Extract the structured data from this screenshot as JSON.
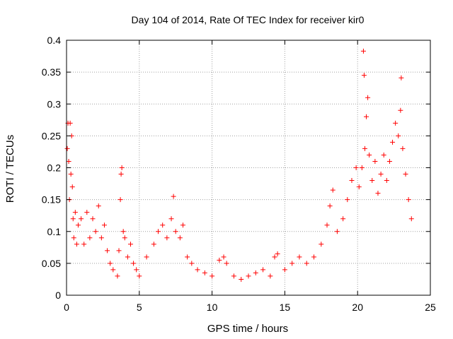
{
  "chart_data": {
    "type": "scatter",
    "title": "Day 104 of 2014, Rate Of TEC Index for receiver kir0",
    "xlabel": "GPS time / hours",
    "ylabel": "ROTI / TECUs",
    "xlim": [
      0,
      25
    ],
    "ylim": [
      0,
      0.4
    ],
    "x_ticks": [
      "0",
      "5",
      "10",
      "15",
      "20",
      "25"
    ],
    "y_ticks": [
      "0",
      "0.05",
      "0.1",
      "0.15",
      "0.2",
      "0.25",
      "0.3",
      "0.35",
      "0.4"
    ],
    "x_tick_values": [
      0,
      5,
      10,
      15,
      20,
      25
    ],
    "y_tick_values": [
      0,
      0.05,
      0.1,
      0.15,
      0.2,
      0.25,
      0.3,
      0.35,
      0.4
    ],
    "grid": true,
    "marker": "+",
    "marker_color": "#ff0000",
    "series": [
      {
        "points": [
          [
            0.05,
            0.23
          ],
          [
            0.1,
            0.27
          ],
          [
            0.15,
            0.21
          ],
          [
            0.2,
            0.15
          ],
          [
            0.25,
            0.27
          ],
          [
            0.3,
            0.19
          ],
          [
            0.35,
            0.25
          ],
          [
            0.4,
            0.17
          ],
          [
            0.45,
            0.12
          ],
          [
            0.5,
            0.09
          ],
          [
            0.6,
            0.13
          ],
          [
            0.7,
            0.08
          ],
          [
            0.8,
            0.11
          ],
          [
            1.0,
            0.12
          ],
          [
            1.2,
            0.08
          ],
          [
            1.4,
            0.13
          ],
          [
            1.6,
            0.09
          ],
          [
            1.8,
            0.12
          ],
          [
            2.0,
            0.1
          ],
          [
            2.2,
            0.14
          ],
          [
            2.4,
            0.09
          ],
          [
            2.6,
            0.11
          ],
          [
            2.8,
            0.07
          ],
          [
            3.0,
            0.05
          ],
          [
            3.2,
            0.04
          ],
          [
            3.5,
            0.03
          ],
          [
            3.6,
            0.07
          ],
          [
            3.7,
            0.15
          ],
          [
            3.75,
            0.19
          ],
          [
            3.8,
            0.2
          ],
          [
            3.9,
            0.1
          ],
          [
            4.0,
            0.09
          ],
          [
            4.2,
            0.06
          ],
          [
            4.4,
            0.08
          ],
          [
            4.6,
            0.05
          ],
          [
            4.8,
            0.04
          ],
          [
            5.0,
            0.03
          ],
          [
            5.5,
            0.06
          ],
          [
            6.0,
            0.08
          ],
          [
            6.3,
            0.1
          ],
          [
            6.6,
            0.11
          ],
          [
            6.9,
            0.09
          ],
          [
            7.2,
            0.12
          ],
          [
            7.35,
            0.155
          ],
          [
            7.5,
            0.1
          ],
          [
            7.8,
            0.09
          ],
          [
            8.0,
            0.11
          ],
          [
            8.3,
            0.06
          ],
          [
            8.6,
            0.05
          ],
          [
            9.0,
            0.04
          ],
          [
            9.5,
            0.035
          ],
          [
            10.0,
            0.03
          ],
          [
            10.5,
            0.055
          ],
          [
            10.8,
            0.06
          ],
          [
            11.0,
            0.05
          ],
          [
            11.5,
            0.03
          ],
          [
            12.0,
            0.025
          ],
          [
            12.5,
            0.03
          ],
          [
            13.0,
            0.035
          ],
          [
            13.5,
            0.04
          ],
          [
            14.0,
            0.03
          ],
          [
            14.3,
            0.06
          ],
          [
            14.5,
            0.065
          ],
          [
            15.0,
            0.04
          ],
          [
            15.5,
            0.05
          ],
          [
            16.0,
            0.06
          ],
          [
            16.5,
            0.05
          ],
          [
            17.0,
            0.06
          ],
          [
            17.5,
            0.08
          ],
          [
            17.9,
            0.11
          ],
          [
            18.1,
            0.14
          ],
          [
            18.3,
            0.165
          ],
          [
            18.6,
            0.1
          ],
          [
            19.0,
            0.12
          ],
          [
            19.3,
            0.15
          ],
          [
            19.6,
            0.18
          ],
          [
            19.9,
            0.2
          ],
          [
            20.1,
            0.17
          ],
          [
            20.3,
            0.2
          ],
          [
            20.4,
            0.383
          ],
          [
            20.45,
            0.345
          ],
          [
            20.5,
            0.23
          ],
          [
            20.6,
            0.28
          ],
          [
            20.7,
            0.31
          ],
          [
            20.8,
            0.22
          ],
          [
            21.0,
            0.18
          ],
          [
            21.2,
            0.21
          ],
          [
            21.4,
            0.16
          ],
          [
            21.6,
            0.19
          ],
          [
            21.8,
            0.22
          ],
          [
            22.0,
            0.18
          ],
          [
            22.2,
            0.21
          ],
          [
            22.4,
            0.24
          ],
          [
            22.6,
            0.27
          ],
          [
            22.8,
            0.25
          ],
          [
            22.95,
            0.29
          ],
          [
            23.0,
            0.341
          ],
          [
            23.1,
            0.23
          ],
          [
            23.3,
            0.19
          ],
          [
            23.5,
            0.15
          ],
          [
            23.7,
            0.12
          ]
        ]
      }
    ]
  }
}
